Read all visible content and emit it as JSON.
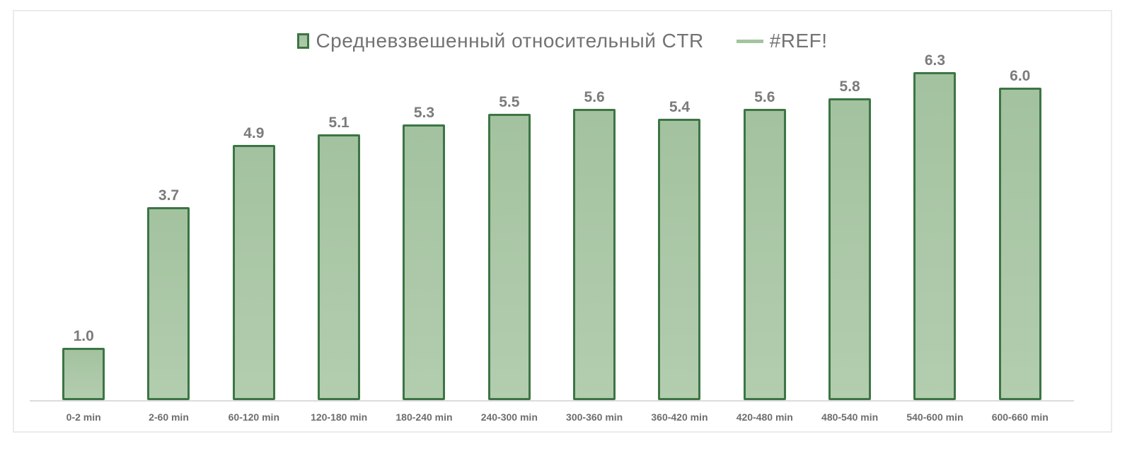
{
  "chart_data": {
    "type": "bar",
    "title": "",
    "categories": [
      "0-2 min",
      "2-60 min",
      "60-120 min",
      "120-180 min",
      "180-240 min",
      "240-300 min",
      "300-360 min",
      "360-420 min",
      "420-480 min",
      "480-540 min",
      "540-600 min",
      "600-660 min"
    ],
    "values": [
      1.0,
      3.7,
      4.9,
      5.1,
      5.3,
      5.5,
      5.6,
      5.4,
      5.6,
      5.8,
      6.3,
      6.0
    ],
    "value_labels": [
      "1.0",
      "3.7",
      "4.9",
      "5.1",
      "5.3",
      "5.5",
      "5.6",
      "5.4",
      "5.6",
      "5.8",
      "6.3",
      "6.0"
    ],
    "legend": [
      {
        "label": "Средневзвешенный относительный CTR",
        "marker": "square",
        "color": "#a3c29f",
        "border_color": "#3c7544"
      },
      {
        "label": "#REF!",
        "marker": "line",
        "color": "#a2c59e"
      }
    ],
    "legend_position": "top-center",
    "grid": false,
    "y_axis_visible": false,
    "ylim": [
      0,
      6.3
    ],
    "xlabel": "",
    "ylabel": ""
  },
  "colors": {
    "bar_fill_top": "#a3c29f",
    "bar_fill_bottom": "#b3cdaf",
    "bar_border": "#3c7544",
    "axis_line": "#dcdcdc",
    "value_label_text": "#7b7b7b",
    "x_label_text": "#6e6e6e",
    "legend_text": "#737373",
    "frame_border": "#ebebeb",
    "background": "#ffffff"
  }
}
